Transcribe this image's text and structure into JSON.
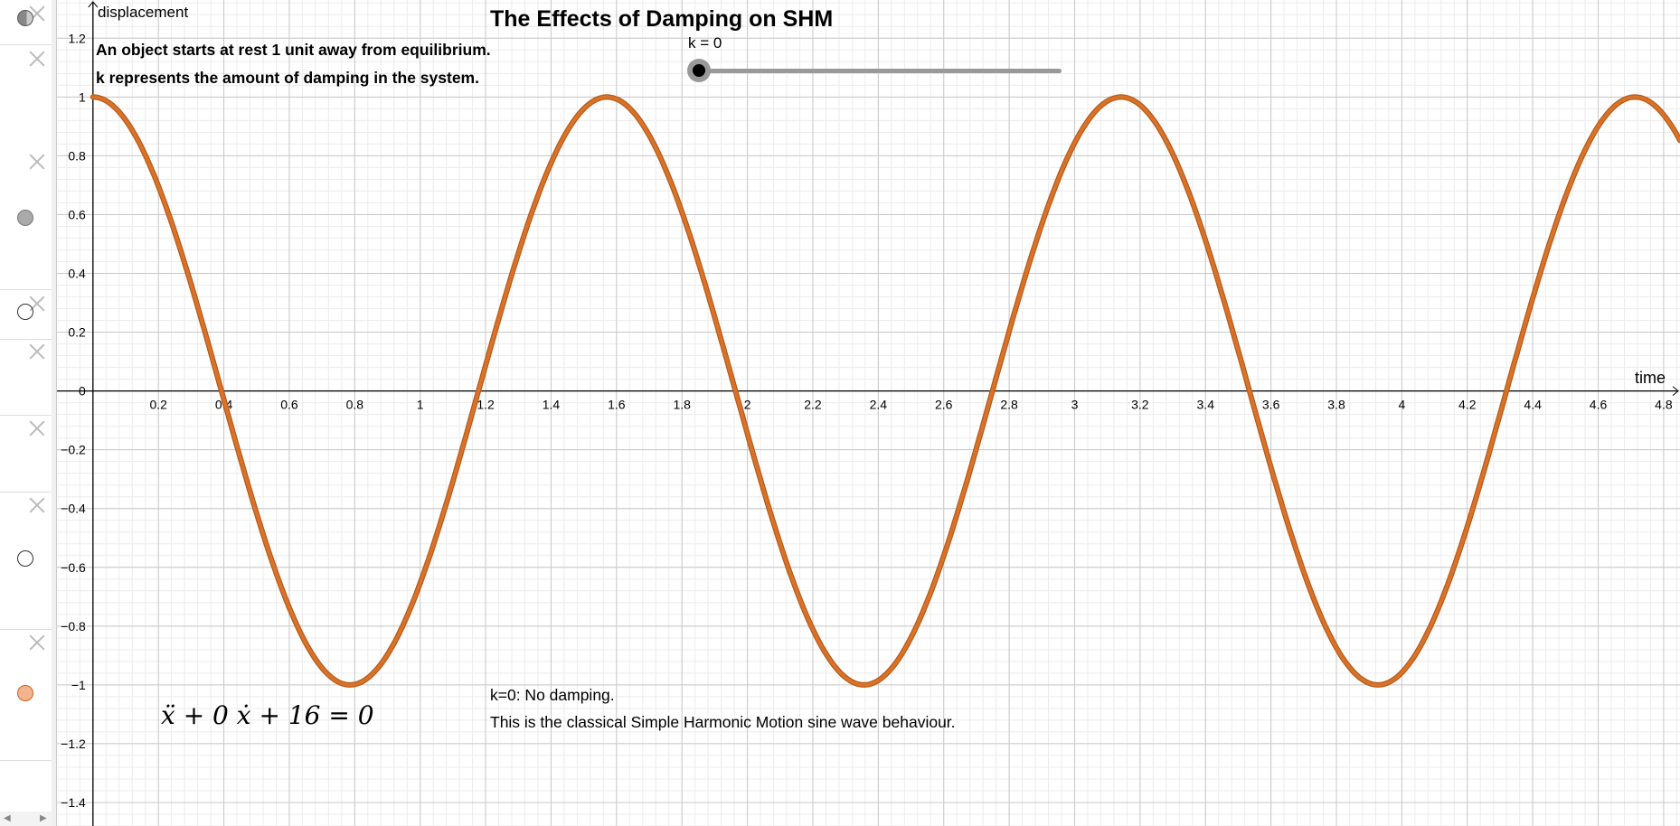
{
  "panel": {
    "items": [
      {
        "icon": "partial-filled-circle",
        "color": "#888888"
      },
      {
        "icon": "none"
      },
      {
        "icon": "filled-circle",
        "color": "#aaaaaa"
      },
      {
        "icon": "empty-circle"
      },
      {
        "icon": "none"
      },
      {
        "icon": "none"
      },
      {
        "icon": "empty-circle"
      },
      {
        "icon": "filled-circle",
        "color": "#f2b48f"
      }
    ]
  },
  "texts": {
    "title": "The Effects of Damping on SHM",
    "intro_line1": "An object starts at rest 1 unit away from equilibrium.",
    "intro_line2": "k represents the amount of damping in the system.",
    "note_line1": "k=0: No damping.",
    "note_line2": "This is the classical Simple Harmonic Motion sine wave behaviour.",
    "equation": "ẍ +  0 ẋ + 16 = 0"
  },
  "slider": {
    "label": "k = 0",
    "name": "k",
    "value": 0,
    "fraction": 0
  },
  "chart_data": {
    "type": "line",
    "title": "The Effects of Damping on SHM",
    "xlabel": "time",
    "ylabel": "displacement",
    "xlim": [
      -0.11,
      4.85
    ],
    "ylim": [
      -1.48,
      1.33
    ],
    "grid": true,
    "x_ticks": [
      "0.2",
      "0.4",
      "0.6",
      "0.8",
      "1",
      "1.2",
      "1.4",
      "1.6",
      "1.8",
      "2",
      "2.2",
      "2.4",
      "2.6",
      "2.8",
      "3",
      "3.2",
      "3.4",
      "3.6",
      "3.8",
      "4",
      "4.2",
      "4.4",
      "4.6",
      "4.8"
    ],
    "y_ticks": [
      "1.2",
      "1",
      "0.8",
      "0.6",
      "0.4",
      "0.2",
      "0",
      "−0.2",
      "−0.4",
      "−0.6",
      "−0.8",
      "−1",
      "−1.2",
      "−1.4"
    ],
    "series": [
      {
        "function": "cos(4t)",
        "omega": 4,
        "amplitude": 1,
        "damping_k": 0,
        "t_range": [
          0,
          4.85
        ],
        "color": "#d9732a"
      }
    ]
  }
}
